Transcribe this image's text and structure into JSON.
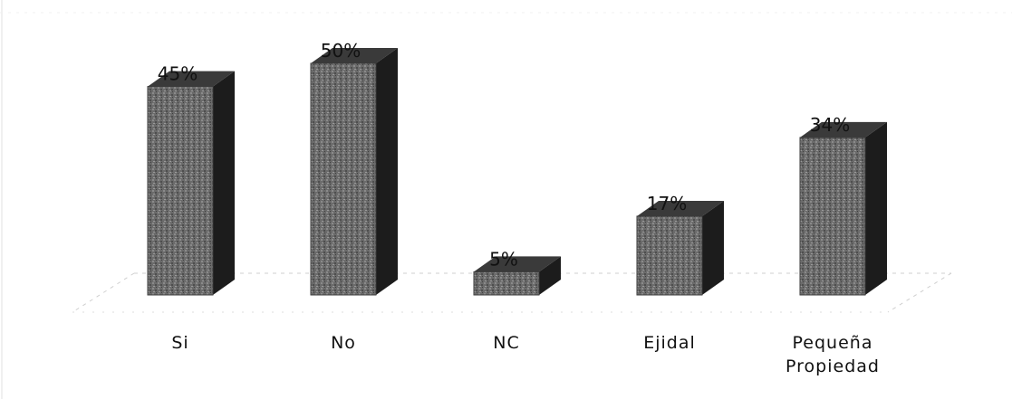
{
  "chart_data": {
    "type": "bar",
    "style": "3d-column",
    "categories": [
      "Si",
      "No",
      "NC",
      "Ejidal",
      "Pequeña\nPropiedad"
    ],
    "values": [
      45,
      50,
      5,
      17,
      34
    ],
    "data_labels": [
      "45%",
      "50%",
      "5%",
      "17%",
      "34%"
    ],
    "value_unit": "%",
    "ylim": [
      0,
      50
    ],
    "grid": false,
    "legend": "none",
    "colors": {
      "bar_front": "#6e6e6e",
      "bar_top": "#3a3a3a",
      "bar_side": "#1c1c1c",
      "floor_line": "#bdbdbd"
    }
  }
}
